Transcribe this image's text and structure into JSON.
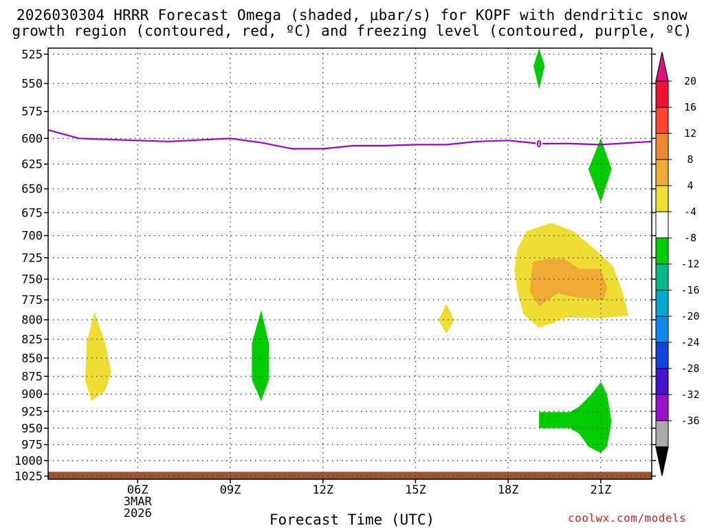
{
  "title": {
    "line1": "2026030304 HRRR Forecast Omega (shaded, μbar/s) for KOPF with dendritic snow",
    "line2": "growth region (contoured, red, ºC) and freezing level (contoured, purple, ºC)"
  },
  "xlabel": "Forecast Time (UTC)",
  "credit": "coolwx.com/models",
  "chart_data": {
    "type": "contour",
    "x_unit": "hours since 00Z 3MAR2026",
    "xlim": [
      3.1,
      22.65
    ],
    "x_ticks": [
      {
        "x": 6,
        "label": "06Z",
        "sub": [
          "3MAR",
          "2026"
        ]
      },
      {
        "x": 9,
        "label": "09Z"
      },
      {
        "x": 12,
        "label": "12Z"
      },
      {
        "x": 15,
        "label": "15Z"
      },
      {
        "x": 18,
        "label": "18Z"
      },
      {
        "x": 21,
        "label": "21Z"
      }
    ],
    "y_unit": "hPa",
    "ylim": [
      520,
      1030
    ],
    "y_ticks": [
      525,
      550,
      575,
      600,
      625,
      650,
      675,
      700,
      725,
      750,
      775,
      800,
      825,
      850,
      875,
      900,
      925,
      950,
      975,
      1000,
      1025
    ],
    "grid": true,
    "colorbar": {
      "levels": [
        "20",
        "16",
        "12",
        "8",
        "4",
        "-4",
        "-8",
        "-12",
        "-16",
        "-20",
        "-24",
        "-28",
        "-32",
        "-36"
      ],
      "colors": [
        "#ee1133",
        "#ff4433",
        "#ee8833",
        "#eeaa33",
        "#eedd33",
        "#ffffff",
        "#00cc00",
        "#00bb88",
        "#00aacc",
        "#1188ee",
        "#1144dd",
        "#4411cc",
        "#9911cc",
        "#aaaaaa"
      ],
      "top_color": "#dd1177",
      "bottom_color": "#000000"
    },
    "freezing_level": {
      "label": "0",
      "color": "#9900cc",
      "label_x": 19.0,
      "points": [
        [
          3.1,
          592
        ],
        [
          4.1,
          600
        ],
        [
          6,
          602
        ],
        [
          7,
          603
        ],
        [
          9,
          600
        ],
        [
          10,
          604
        ],
        [
          11,
          610
        ],
        [
          12,
          610
        ],
        [
          13,
          607
        ],
        [
          14,
          607
        ],
        [
          15,
          606
        ],
        [
          16,
          606
        ],
        [
          17,
          603
        ],
        [
          18,
          602
        ],
        [
          19,
          605
        ],
        [
          20,
          605
        ],
        [
          21,
          606
        ],
        [
          22.65,
          603
        ]
      ]
    },
    "ground": {
      "color": "#a0522d",
      "top_hpa": 1018
    },
    "omega_regions": [
      {
        "color": "#00cc00",
        "points": [
          [
            19.0,
            520
          ],
          [
            19.18,
            535
          ],
          [
            19.0,
            555
          ],
          [
            18.82,
            535
          ]
        ]
      },
      {
        "color": "#00cc00",
        "points": [
          [
            21.0,
            600
          ],
          [
            21.35,
            630
          ],
          [
            21.0,
            664
          ],
          [
            20.6,
            630
          ]
        ]
      },
      {
        "color": "#eedd33",
        "points": [
          [
            4.6,
            790
          ],
          [
            4.95,
            830
          ],
          [
            5.15,
            870
          ],
          [
            4.95,
            895
          ],
          [
            4.5,
            910
          ],
          [
            4.3,
            880
          ],
          [
            4.35,
            830
          ]
        ]
      },
      {
        "color": "#00cc00",
        "points": [
          [
            10.0,
            788
          ],
          [
            10.25,
            830
          ],
          [
            10.25,
            880
          ],
          [
            10.0,
            910
          ],
          [
            9.7,
            880
          ],
          [
            9.7,
            830
          ]
        ]
      },
      {
        "color": "#eedd33",
        "points": [
          [
            16.0,
            780
          ],
          [
            16.25,
            800
          ],
          [
            16.0,
            818
          ],
          [
            15.75,
            800
          ]
        ]
      },
      {
        "color": "#eedd33",
        "points": [
          [
            18.3,
            715
          ],
          [
            18.6,
            695
          ],
          [
            19.4,
            686
          ],
          [
            20.1,
            695
          ],
          [
            20.8,
            715
          ],
          [
            21.4,
            735
          ],
          [
            21.7,
            765
          ],
          [
            21.9,
            795
          ],
          [
            20.9,
            798
          ],
          [
            19.9,
            797
          ],
          [
            19.0,
            810
          ],
          [
            18.5,
            793
          ],
          [
            18.3,
            765
          ],
          [
            18.2,
            740
          ]
        ]
      },
      {
        "color": "#eeaa33",
        "points": [
          [
            18.8,
            730
          ],
          [
            19.3,
            726
          ],
          [
            19.8,
            726
          ],
          [
            20.3,
            738
          ],
          [
            21.0,
            738
          ],
          [
            21.2,
            760
          ],
          [
            21.1,
            775
          ],
          [
            20.2,
            772
          ],
          [
            19.6,
            767
          ],
          [
            19.0,
            783
          ],
          [
            18.7,
            765
          ]
        ]
      },
      {
        "color": "#00cc00",
        "points": [
          [
            19.0,
            926
          ],
          [
            20.0,
            926
          ],
          [
            20.3,
            918
          ],
          [
            20.7,
            900
          ],
          [
            21.0,
            883
          ],
          [
            21.2,
            900
          ],
          [
            21.35,
            940
          ],
          [
            21.2,
            978
          ],
          [
            21.0,
            988
          ],
          [
            20.6,
            978
          ],
          [
            20.3,
            958
          ],
          [
            20.0,
            950
          ],
          [
            19.0,
            950
          ]
        ]
      }
    ]
  }
}
